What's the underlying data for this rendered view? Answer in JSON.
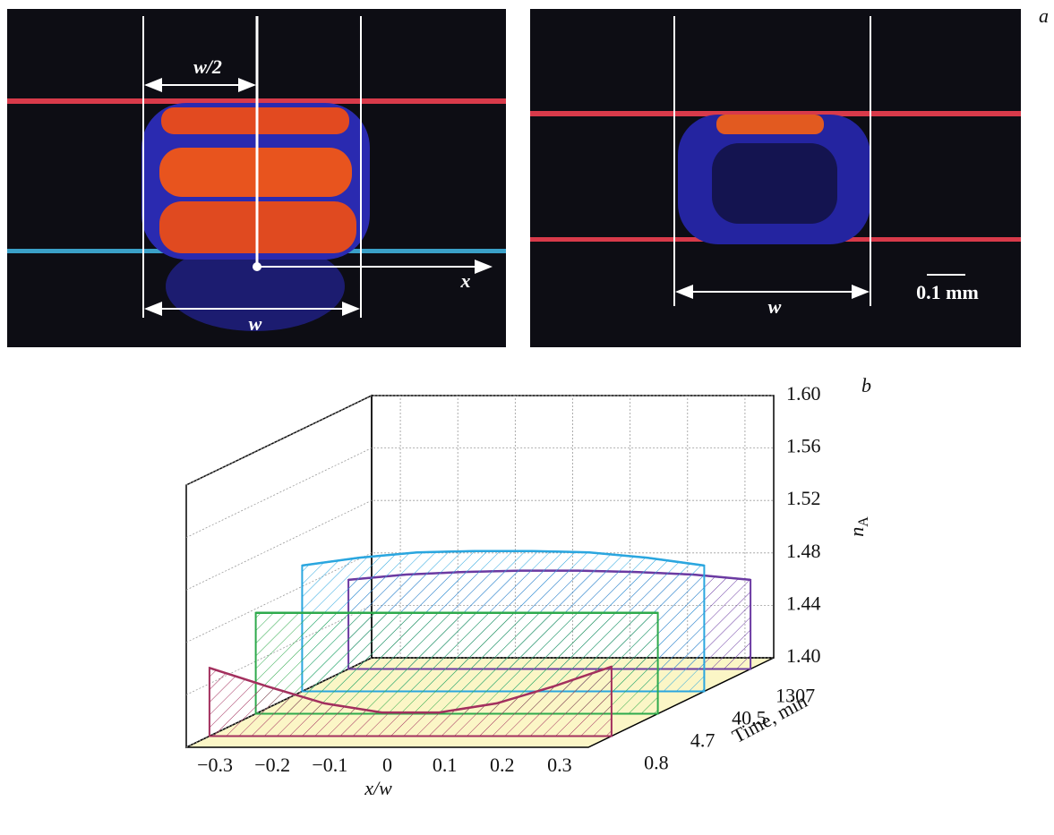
{
  "panel_a": {
    "label": "a",
    "left_half_width": "w/2",
    "left_x_axis": "x",
    "left_width": "w",
    "right_width": "w",
    "scale_bar": "0.1 mm"
  },
  "chart_data": {
    "type": "profile3d",
    "panel_label": "b",
    "xlabel": "x/w",
    "ylabel": "Time, min",
    "zlabel": "n",
    "zlabel_sub": "A",
    "x": [
      -0.35,
      -0.25,
      -0.15,
      -0.05,
      0.05,
      0.15,
      0.25,
      0.35
    ],
    "categories": [
      "0.8",
      "4.7",
      "40.5",
      "1307"
    ],
    "series": [
      {
        "name": "0.8",
        "color": "#a3305e",
        "values": [
          1.452,
          1.438,
          1.425,
          1.418,
          1.418,
          1.425,
          1.438,
          1.453
        ]
      },
      {
        "name": "4.7",
        "color": "#2eaa4c",
        "values": [
          1.477,
          1.477,
          1.477,
          1.477,
          1.477,
          1.477,
          1.477,
          1.477
        ]
      },
      {
        "name": "40.5",
        "color": "#2aa6df",
        "values": [
          1.496,
          1.502,
          1.506,
          1.507,
          1.507,
          1.506,
          1.502,
          1.496
        ]
      },
      {
        "name": "1307",
        "color": "#6b3aa2",
        "values": [
          1.468,
          1.472,
          1.474,
          1.475,
          1.475,
          1.474,
          1.472,
          1.468
        ]
      }
    ],
    "xlim": [
      -0.35,
      0.35
    ],
    "xticks": [
      {
        "value": -0.3,
        "label": "−0.3"
      },
      {
        "value": -0.2,
        "label": "−0.2"
      },
      {
        "value": -0.1,
        "label": "−0.1"
      },
      0,
      0.1,
      0.2,
      0.3
    ],
    "zlim": [
      1.4,
      1.6
    ],
    "zticks": [
      {
        "value": 1.4,
        "label": "1.40"
      },
      1.44,
      1.48,
      1.52,
      1.56,
      {
        "value": 1.6,
        "label": "1.60"
      }
    ],
    "grid": true,
    "floor_color": "#fbf6c6"
  }
}
